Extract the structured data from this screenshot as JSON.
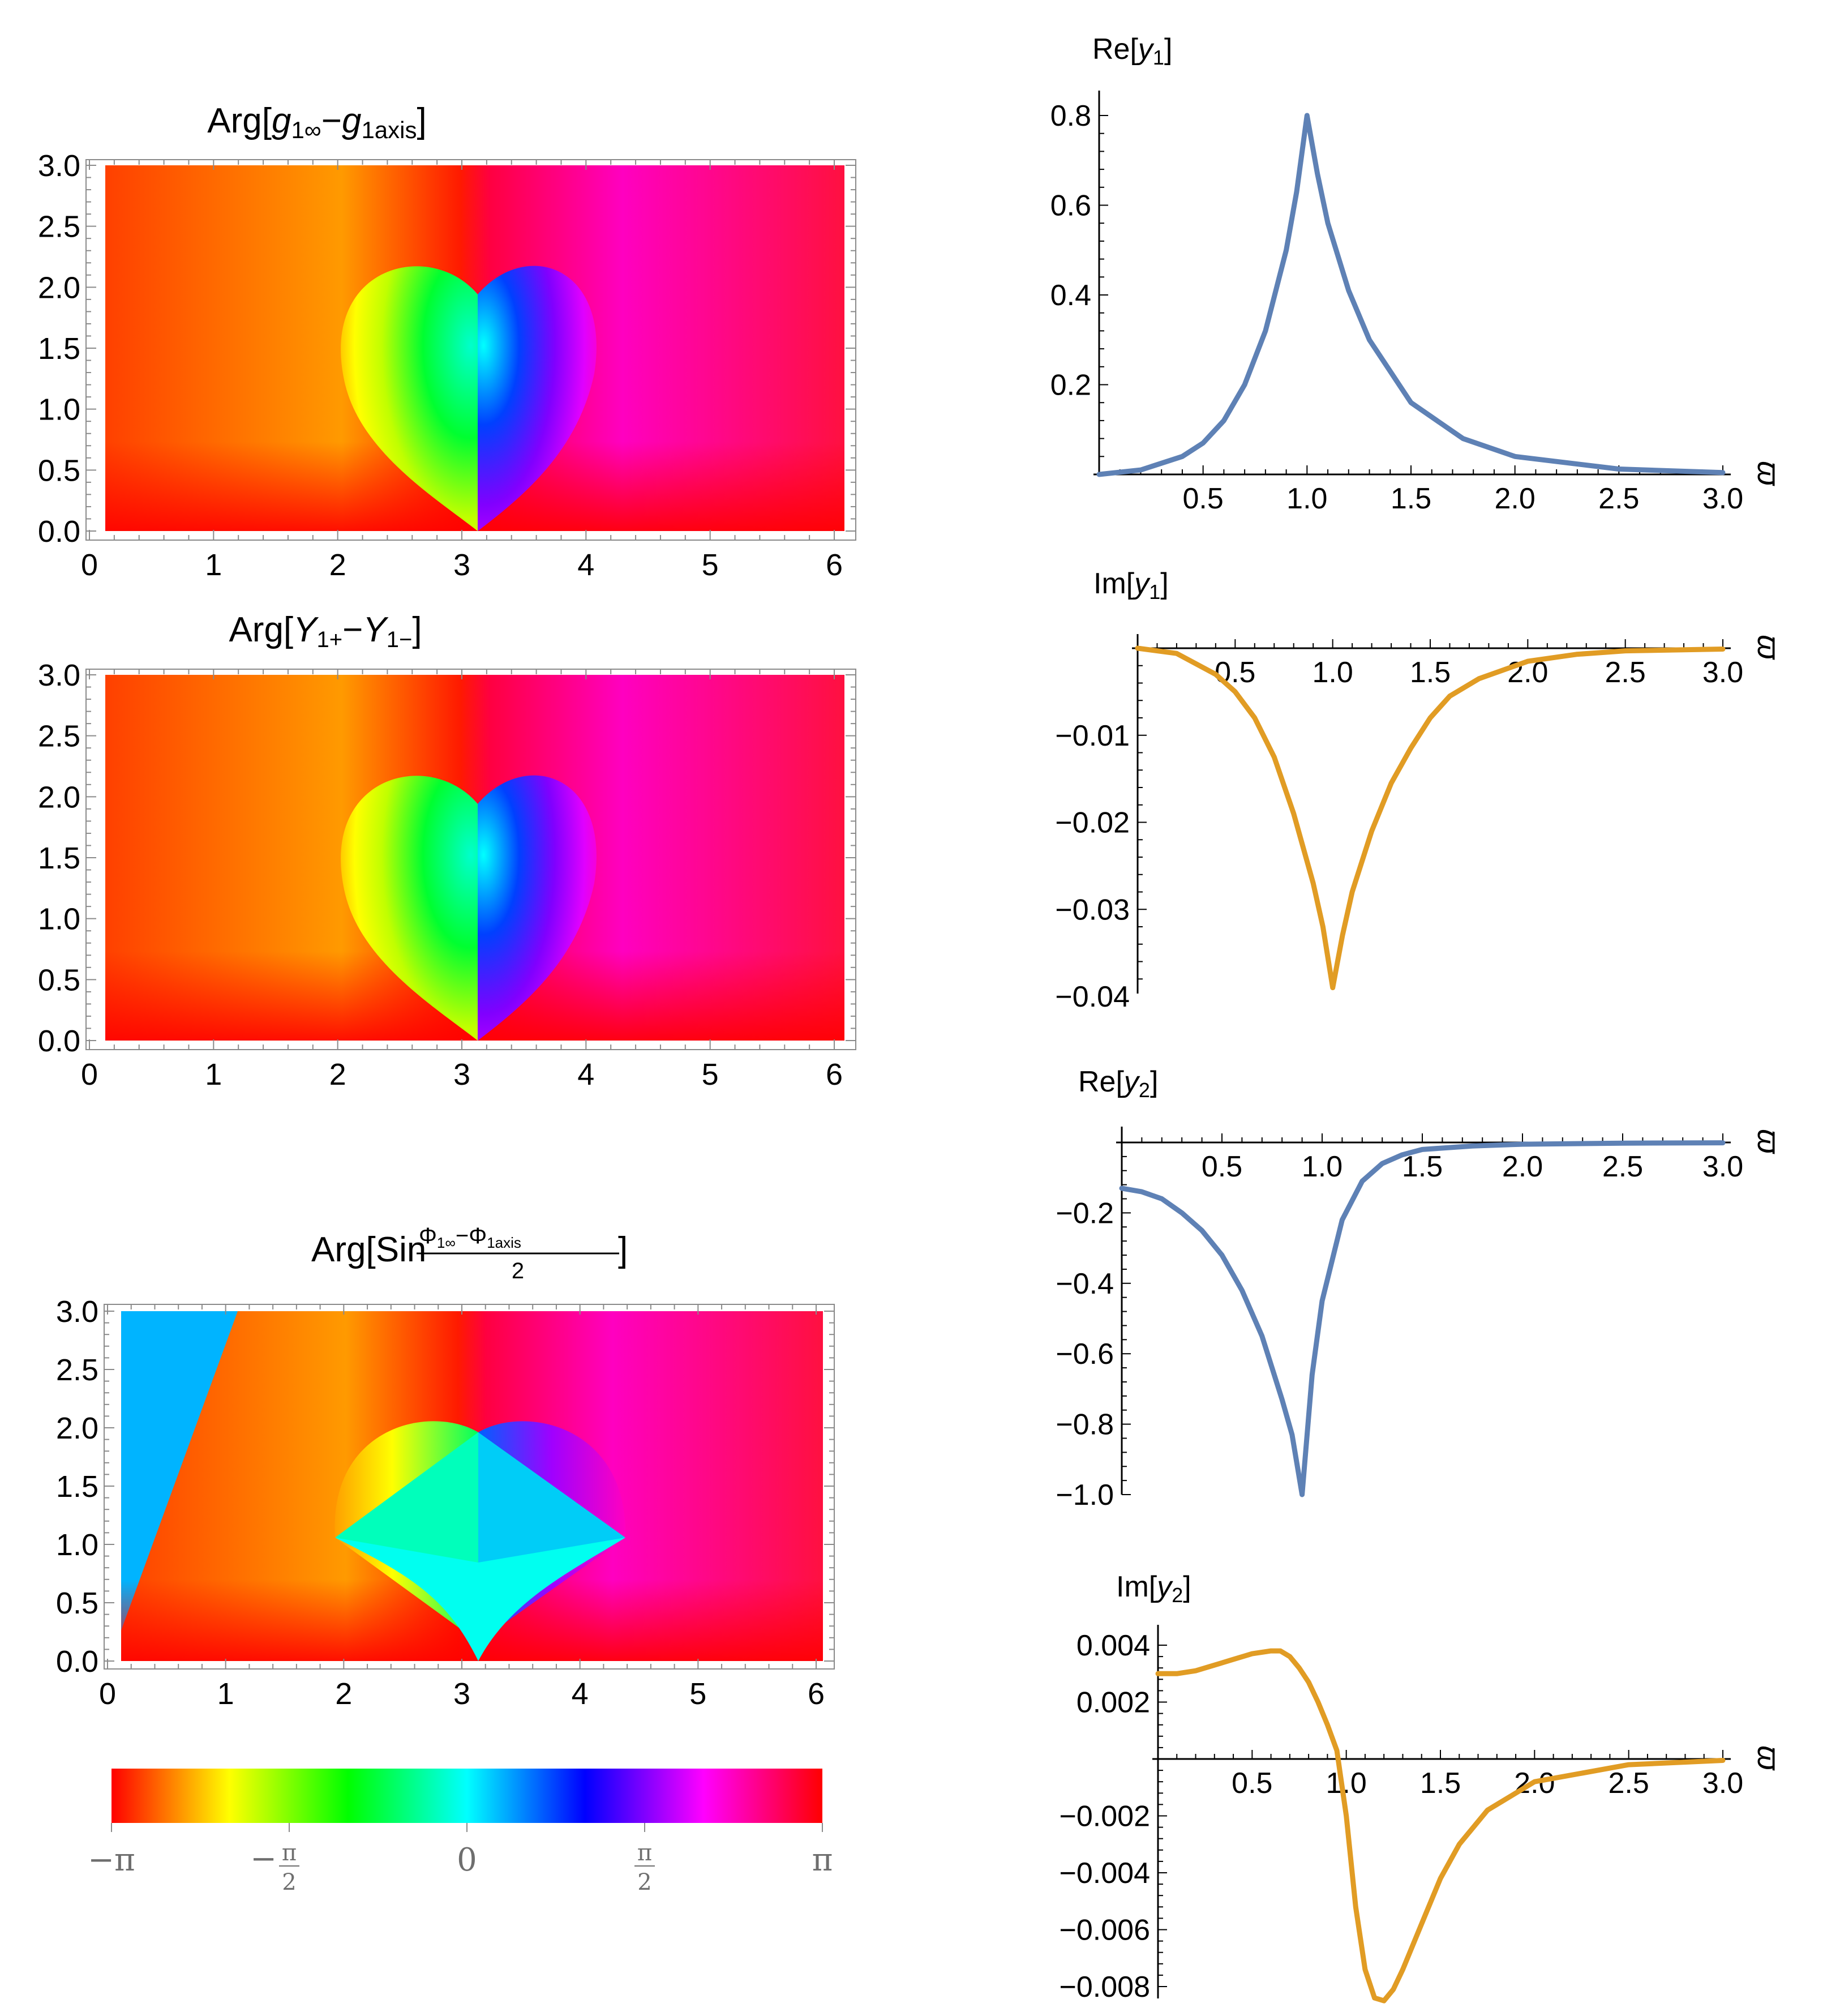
{
  "colors": {
    "series_blue": "#5e81b5",
    "series_orange": "#e19c24",
    "frame": "#8a8a8a"
  },
  "chart_data": [
    {
      "type": "heatmap",
      "title": "Arg[g1∞−g1axis]",
      "title_parts": {
        "pre": "Arg",
        "open": "[",
        "a": "g",
        "a_sub": "1∞",
        "minus": "−",
        "b": "g",
        "b_sub": "1axis",
        "close": "]"
      },
      "x_ticks": [
        "0",
        "1",
        "2",
        "3",
        "4",
        "5",
        "6"
      ],
      "y_ticks": [
        "0.0",
        "0.5",
        "1.0",
        "1.5",
        "2.0",
        "2.5",
        "3.0"
      ],
      "xlim": [
        0,
        6
      ],
      "ylim": [
        0,
        3
      ],
      "features": {
        "branch_point_upper": [
          3.14,
          1.95
        ],
        "branch_point_lower": [
          3.14,
          0
        ]
      }
    },
    {
      "type": "heatmap",
      "title": "Arg[Y1+−Y1−]",
      "title_parts": {
        "pre": "Arg",
        "open": "[",
        "a": "Y",
        "a_sub": "1+",
        "minus": "−",
        "b": "Y",
        "b_sub": "1−",
        "close": "]"
      },
      "x_ticks": [
        "0",
        "1",
        "2",
        "3",
        "4",
        "5",
        "6"
      ],
      "y_ticks": [
        "0.0",
        "0.5",
        "1.0",
        "1.5",
        "2.0",
        "2.5",
        "3.0"
      ],
      "xlim": [
        0,
        6
      ],
      "ylim": [
        0,
        3
      ]
    },
    {
      "type": "heatmap",
      "title": "Arg[Sin (Φ1∞−Φ1axis)/2]",
      "title_parts": {
        "pre": "Arg",
        "open": "[",
        "fn": "Sin",
        "numer": "Φ",
        "numer_sub1": "1∞",
        "numer_minus": "−",
        "numer2": "Φ",
        "numer_sub2": "1axis",
        "denom": "2",
        "close": "]"
      },
      "x_ticks": [
        "0",
        "1",
        "2",
        "3",
        "4",
        "5",
        "6"
      ],
      "y_ticks": [
        "0.0",
        "0.5",
        "1.0",
        "1.5",
        "2.0",
        "2.5",
        "3.0"
      ],
      "xlim": [
        0,
        6
      ],
      "ylim": [
        0,
        3
      ],
      "features": {
        "branch_points": [
          [
            1.9,
            1.0
          ],
          [
            4.4,
            1.0
          ],
          [
            3.14,
            1.95
          ],
          [
            3.14,
            0
          ]
        ]
      }
    },
    {
      "type": "colorbar",
      "ticks": [
        "−π",
        "−π/2",
        "0",
        "π/2",
        "π"
      ],
      "tick_parts": [
        {
          "sign": "−",
          "num": "π",
          "den": ""
        },
        {
          "sign": "−",
          "num": "π",
          "den": "2"
        },
        {
          "sign": "",
          "num": "0",
          "den": ""
        },
        {
          "sign": "",
          "num": "π",
          "den": "2"
        },
        {
          "sign": "",
          "num": "π",
          "den": ""
        }
      ],
      "range": [
        -3.14159,
        3.14159
      ]
    },
    {
      "type": "line",
      "title": "Re[y1]",
      "title_parts": {
        "pre": "Re",
        "open": "[",
        "var": "y",
        "sub": "1",
        "close": "]"
      },
      "xlabel": "ϖ",
      "x_ticks": [
        "0.5",
        "1.0",
        "1.5",
        "2.0",
        "2.5",
        "3.0"
      ],
      "y_ticks": [
        "0.2",
        "0.4",
        "0.6",
        "0.8"
      ],
      "xlim": [
        0,
        3
      ],
      "ylim": [
        0,
        0.8
      ],
      "series": [
        {
          "color": "#5e81b5",
          "x": [
            0,
            0.2,
            0.4,
            0.5,
            0.6,
            0.7,
            0.8,
            0.9,
            0.95,
            1.0,
            1.05,
            1.1,
            1.2,
            1.3,
            1.5,
            1.75,
            2.0,
            2.5,
            3.0
          ],
          "y": [
            0,
            0.01,
            0.04,
            0.07,
            0.12,
            0.2,
            0.32,
            0.5,
            0.63,
            0.8,
            0.67,
            0.56,
            0.41,
            0.3,
            0.16,
            0.08,
            0.04,
            0.012,
            0.004
          ]
        }
      ]
    },
    {
      "type": "line",
      "title": "Im[y1]",
      "title_parts": {
        "pre": "Im",
        "open": "[",
        "var": "y",
        "sub": "1",
        "close": "]"
      },
      "xlabel": "ϖ",
      "x_ticks": [
        "0.5",
        "1.0",
        "1.5",
        "2.0",
        "2.5",
        "3.0"
      ],
      "y_ticks": [
        "−0.01",
        "−0.02",
        "−0.03",
        "−0.04"
      ],
      "xlim": [
        0,
        3
      ],
      "ylim": [
        -0.04,
        0
      ],
      "series": [
        {
          "color": "#e19c24",
          "x": [
            0,
            0.2,
            0.4,
            0.5,
            0.6,
            0.7,
            0.8,
            0.9,
            0.95,
            1.0,
            1.05,
            1.1,
            1.2,
            1.3,
            1.4,
            1.5,
            1.6,
            1.75,
            2.0,
            2.25,
            2.5,
            3.0
          ],
          "y": [
            0,
            -0.0006,
            -0.003,
            -0.005,
            -0.008,
            -0.0125,
            -0.019,
            -0.027,
            -0.032,
            -0.039,
            -0.033,
            -0.028,
            -0.021,
            -0.0155,
            -0.0115,
            -0.008,
            -0.0055,
            -0.0035,
            -0.0015,
            -0.0007,
            -0.0003,
            -0.0001
          ]
        }
      ]
    },
    {
      "type": "line",
      "title": "Re[y2]",
      "title_parts": {
        "pre": "Re",
        "open": "[",
        "var": "y",
        "sub": "2",
        "close": "]"
      },
      "xlabel": "ϖ",
      "x_ticks": [
        "0.5",
        "1.0",
        "1.5",
        "2.0",
        "2.5",
        "3.0"
      ],
      "y_ticks": [
        "−0.2",
        "−0.4",
        "−0.6",
        "−0.8",
        "−1.0"
      ],
      "xlim": [
        0,
        3
      ],
      "ylim": [
        -1.0,
        0
      ],
      "series": [
        {
          "color": "#5e81b5",
          "x": [
            0,
            0.1,
            0.2,
            0.3,
            0.4,
            0.5,
            0.6,
            0.7,
            0.8,
            0.85,
            0.9,
            0.95,
            1.0,
            1.1,
            1.2,
            1.3,
            1.4,
            1.5,
            1.75,
            2.0,
            2.5,
            3.0
          ],
          "y": [
            -0.13,
            -0.14,
            -0.16,
            -0.2,
            -0.25,
            -0.32,
            -0.42,
            -0.55,
            -0.73,
            -0.83,
            -1.0,
            -0.66,
            -0.45,
            -0.22,
            -0.11,
            -0.06,
            -0.035,
            -0.02,
            -0.01,
            -0.005,
            -0.002,
            -0.001
          ]
        }
      ]
    },
    {
      "type": "line",
      "title": "Im[y2]",
      "title_parts": {
        "pre": "Im",
        "open": "[",
        "var": "y",
        "sub": "2",
        "close": "]"
      },
      "xlabel": "ϖ",
      "x_ticks": [
        "0.5",
        "1.0",
        "1.5",
        "2.0",
        "2.5",
        "3.0"
      ],
      "y_ticks": [
        "0.004",
        "0.002",
        "−0.002",
        "−0.004",
        "−0.006",
        "−0.008"
      ],
      "xlim": [
        0,
        3
      ],
      "ylim": [
        -0.0088,
        0.0042
      ],
      "series": [
        {
          "color": "#e19c24",
          "x": [
            0,
            0.1,
            0.2,
            0.3,
            0.4,
            0.5,
            0.6,
            0.65,
            0.7,
            0.75,
            0.8,
            0.85,
            0.9,
            0.95,
            1.0,
            1.05,
            1.1,
            1.15,
            1.2,
            1.25,
            1.3,
            1.4,
            1.5,
            1.6,
            1.75,
            2.0,
            2.5,
            3.0
          ],
          "y": [
            0.003,
            0.003,
            0.0031,
            0.0033,
            0.0035,
            0.0037,
            0.0038,
            0.0038,
            0.0036,
            0.0032,
            0.0027,
            0.002,
            0.0012,
            0.0003,
            -0.002,
            -0.0052,
            -0.0074,
            -0.0084,
            -0.0085,
            -0.0081,
            -0.0074,
            -0.0058,
            -0.0042,
            -0.003,
            -0.0018,
            -0.0008,
            -0.0002,
            -5e-05
          ]
        }
      ]
    }
  ]
}
